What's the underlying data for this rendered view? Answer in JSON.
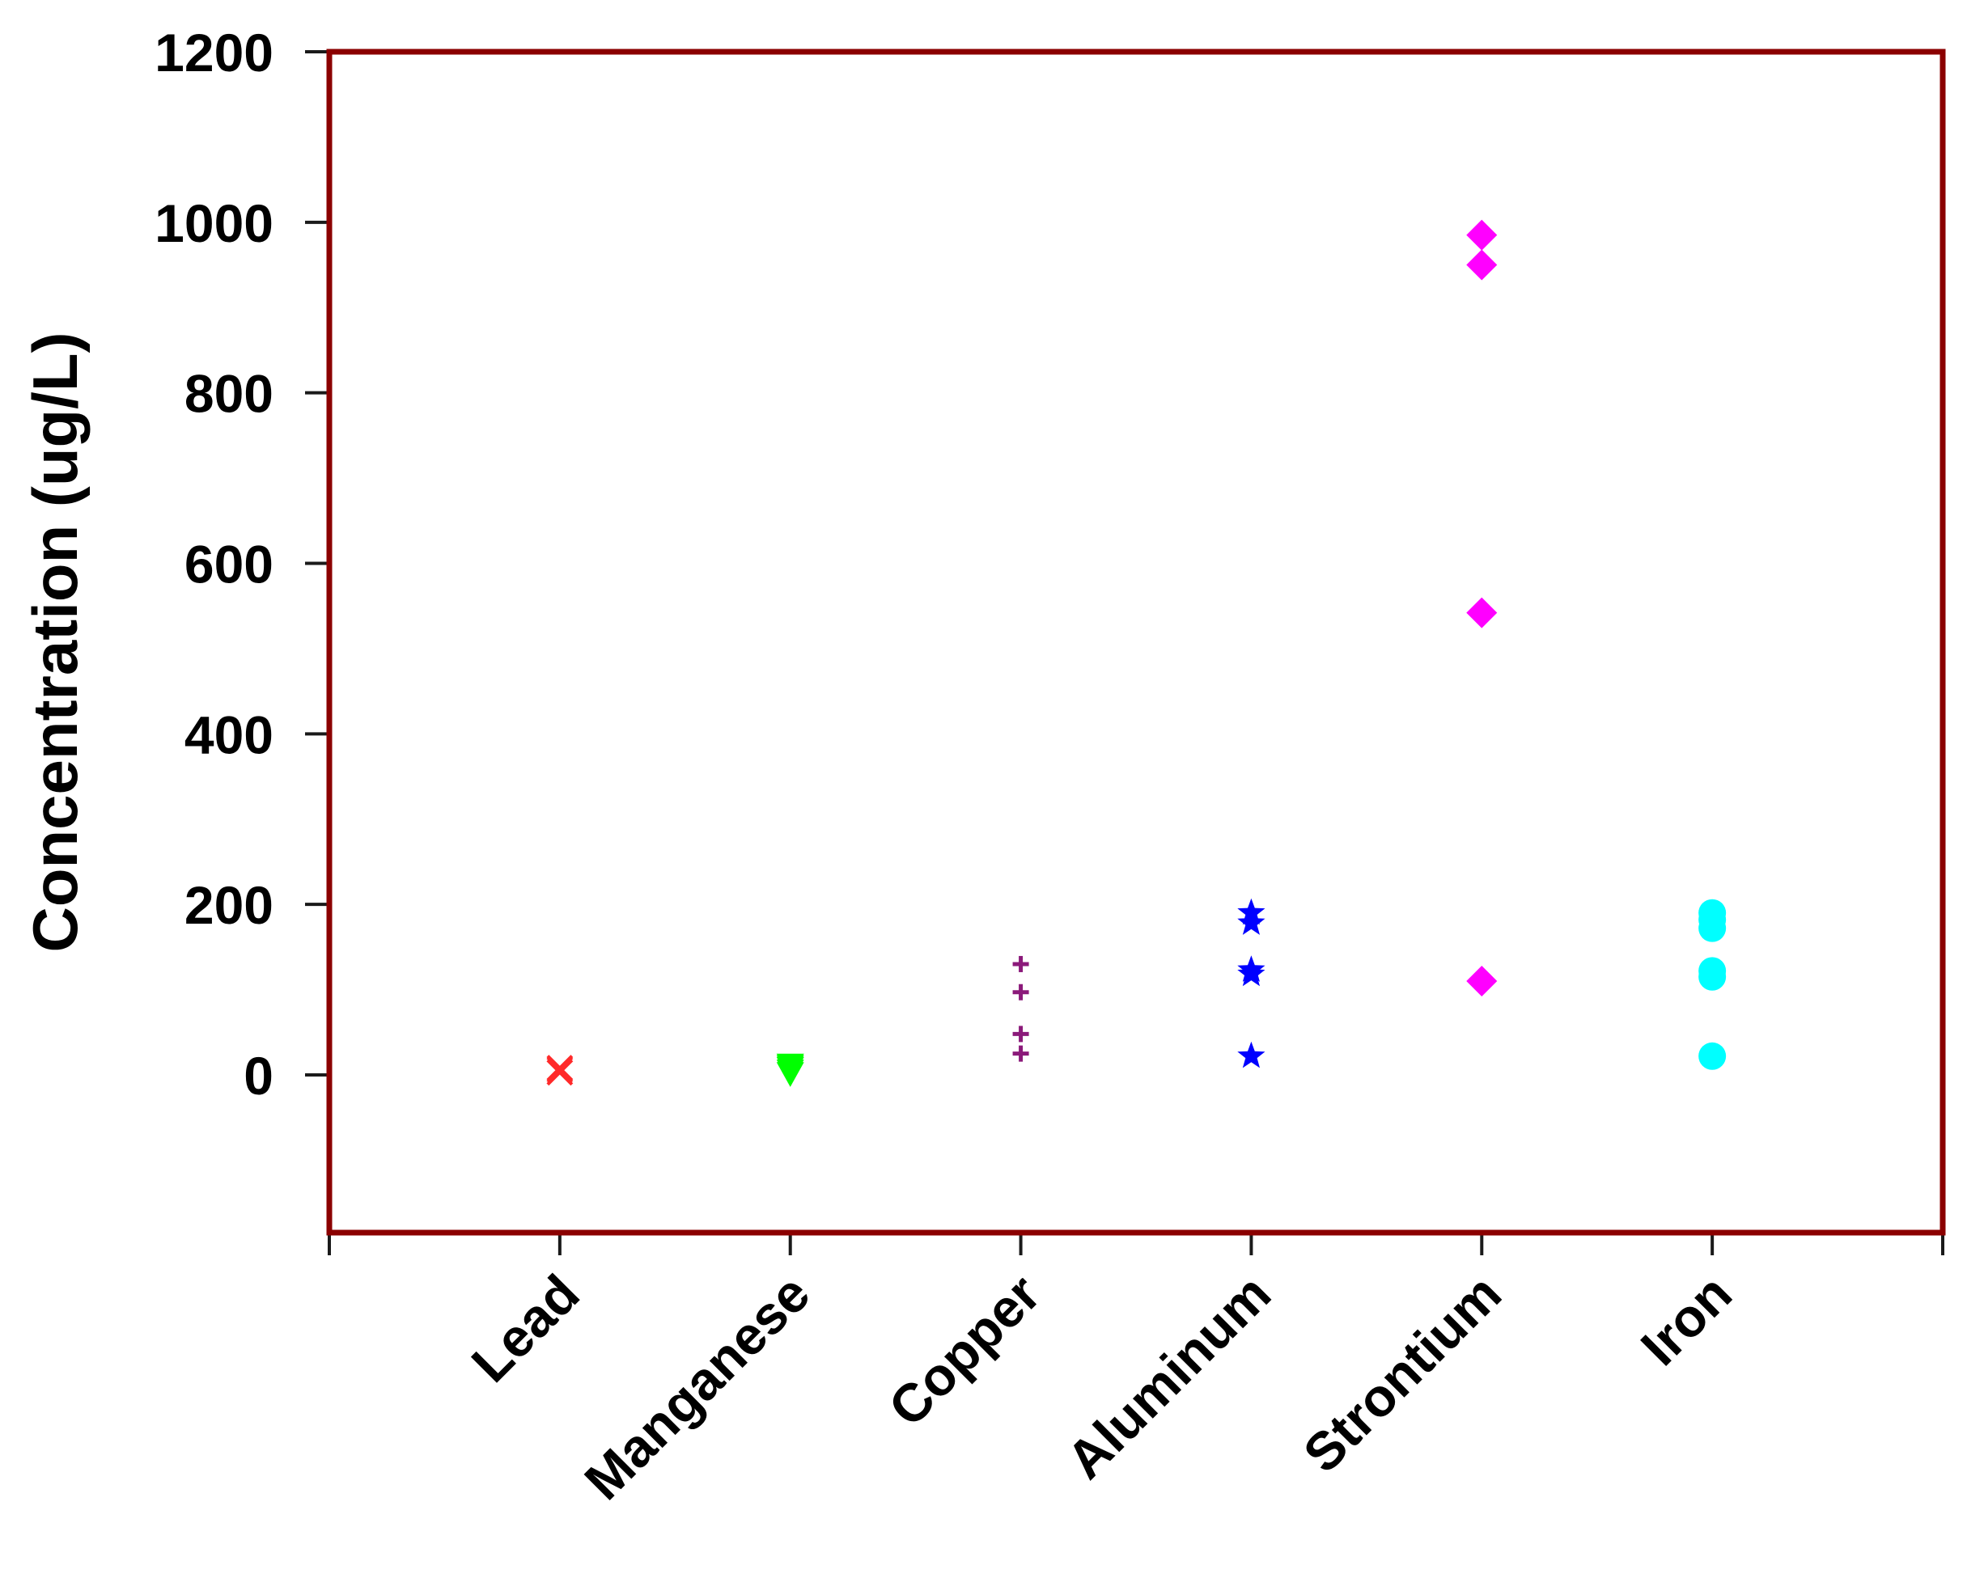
{
  "chart_data": {
    "type": "scatter",
    "title": "",
    "xlabel": "",
    "ylabel": "Concentration (ug/L)",
    "ylim": [
      -185,
      1200
    ],
    "yticks": [
      0,
      200,
      400,
      600,
      800,
      1000,
      1200
    ],
    "categories": [
      "Lead",
      "Manganese",
      "Copper",
      "Aluminum",
      "Strontium",
      "Iron"
    ],
    "grid": false,
    "legend": "none",
    "frame_color": "#8b0000",
    "series": [
      {
        "category": "Lead",
        "marker": "x",
        "color": "#ff2a2a",
        "values": [
          3,
          6,
          8
        ]
      },
      {
        "category": "Manganese",
        "marker": "triangle-down",
        "color": "#00ff00",
        "values": [
          2,
          5,
          8,
          10,
          12
        ]
      },
      {
        "category": "Copper",
        "marker": "plus",
        "color": "#8b1a7a",
        "values": [
          25,
          48,
          97,
          130
        ]
      },
      {
        "category": "Aluminum",
        "marker": "star",
        "color": "#0000ff",
        "values": [
          22,
          118,
          123,
          178,
          190
        ]
      },
      {
        "category": "Strontium",
        "marker": "diamond",
        "color": "#ff00ff",
        "values": [
          110,
          542,
          950,
          985
        ]
      },
      {
        "category": "Iron",
        "marker": "circle",
        "color": "#00ffff",
        "values": [
          22,
          115,
          122,
          172,
          182,
          190
        ]
      }
    ]
  }
}
